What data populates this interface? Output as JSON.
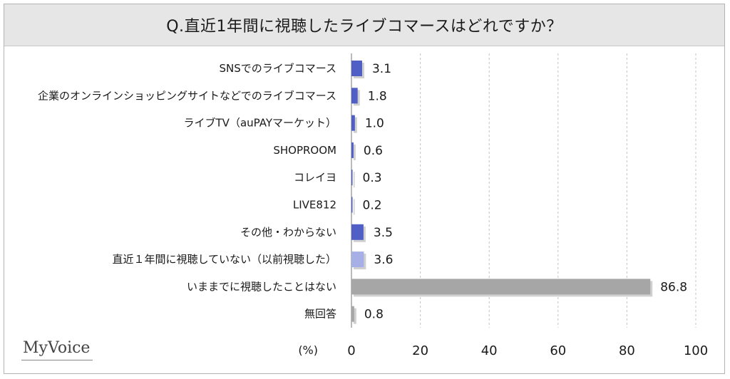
{
  "chart_data": {
    "type": "bar",
    "orientation": "horizontal",
    "title": "Q.直近1年間に視聴したライブコマースはどれですか？",
    "unit": "(%)",
    "categories": [
      "SNSでのライブコマース",
      "企業のオンラインショッピングサイトなどでのライブコマース",
      "ライブTV（auPAYマーケット）",
      "SHOPROOM",
      "コレイヨ",
      "LIVE812",
      "その他・わからない",
      "直近１年間に視聴していない（以前視聴した）",
      "いままでに視聴したことはない",
      "無回答"
    ],
    "values": [
      3.1,
      1.8,
      1.0,
      0.6,
      0.3,
      0.2,
      3.5,
      3.6,
      86.8,
      0.8
    ],
    "value_labels": [
      "3.1",
      "1.8",
      "1.0",
      "0.6",
      "0.3",
      "0.2",
      "3.5",
      "3.6",
      "86.8",
      "0.8"
    ],
    "xlim": [
      0,
      100
    ],
    "xticks": [
      0,
      20,
      40,
      60,
      80,
      100
    ],
    "bar_colors": [
      "#4f5fc6",
      "#4f5fc6",
      "#4f5fc6",
      "#4f5fc6",
      "#4f5fc6",
      "#4f5fc6",
      "#4f5fc6",
      "#a7b0e6",
      "#a6a6a6",
      "#a6a6a6"
    ],
    "grid": "vertical-dashed"
  },
  "logo": "MyVoice"
}
